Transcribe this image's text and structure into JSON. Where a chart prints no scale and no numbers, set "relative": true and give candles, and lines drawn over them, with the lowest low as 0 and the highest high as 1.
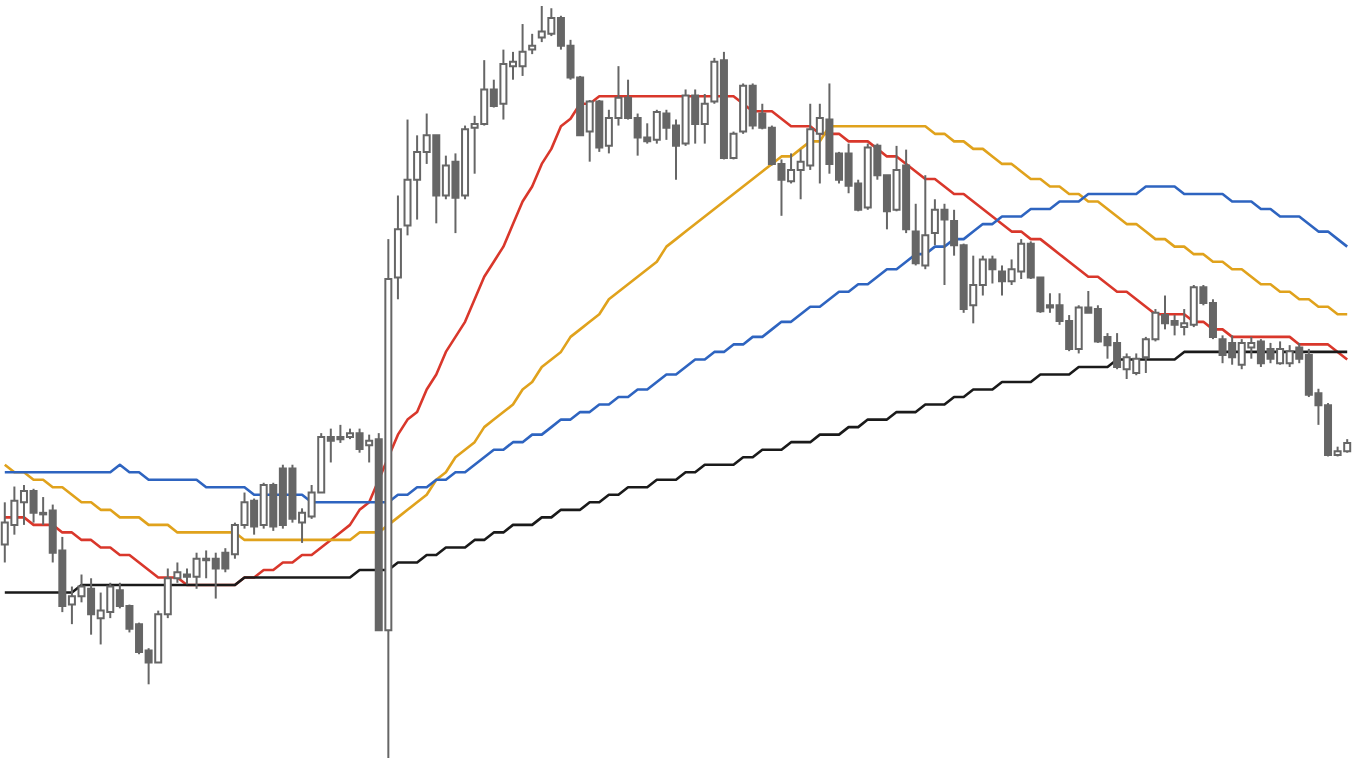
{
  "chart_data": {
    "type": "candlestick",
    "relative": true,
    "categories": [
      null,
      null,
      null,
      null,
      null,
      null,
      null,
      null,
      null,
      null,
      null,
      null,
      null,
      null,
      null,
      null,
      null,
      null,
      null,
      null,
      null,
      null,
      null,
      null,
      null,
      null,
      null,
      null,
      null,
      null,
      null,
      null,
      null,
      null,
      null,
      null,
      null,
      null,
      null,
      null,
      null,
      null,
      null,
      null,
      null,
      null,
      null,
      null,
      null,
      null,
      null,
      null,
      null,
      null,
      null,
      null,
      null,
      null,
      null,
      null,
      null,
      null,
      null,
      null,
      null,
      null,
      null,
      null,
      null,
      null,
      null,
      null,
      null,
      null,
      null,
      null,
      null,
      null,
      null,
      null,
      null,
      null,
      null,
      null,
      null,
      null,
      null,
      null,
      null,
      null,
      null,
      null,
      null,
      null,
      null,
      null,
      null,
      null,
      null,
      null,
      null,
      null,
      null,
      null,
      null,
      null,
      null,
      null,
      null,
      null,
      null,
      null,
      null,
      null,
      null,
      null,
      null,
      null,
      null,
      null,
      null,
      null,
      null,
      null,
      null,
      null,
      null,
      null,
      null,
      null,
      null,
      null,
      null,
      null,
      null,
      null,
      null,
      null,
      null,
      null,
      null
    ],
    "ohlc": [
      [
        0.284,
        0.34,
        0.26,
        0.313
      ],
      [
        0.31,
        0.361,
        0.297,
        0.342
      ],
      [
        0.34,
        0.363,
        0.31,
        0.355
      ],
      [
        0.355,
        0.358,
        0.313,
        0.326
      ],
      [
        0.326,
        0.347,
        0.31,
        0.324
      ],
      [
        0.329,
        0.337,
        0.26,
        0.273
      ],
      [
        0.276,
        0.294,
        0.194,
        0.202
      ],
      [
        0.204,
        0.228,
        0.178,
        0.215
      ],
      [
        0.215,
        0.244,
        0.207,
        0.228
      ],
      [
        0.225,
        0.239,
        0.164,
        0.191
      ],
      [
        0.186,
        0.22,
        0.151,
        0.196
      ],
      [
        0.194,
        0.233,
        0.186,
        0.228
      ],
      [
        0.223,
        0.233,
        0.199,
        0.202
      ],
      [
        0.202,
        0.204,
        0.167,
        0.172
      ],
      [
        0.178,
        0.18,
        0.138,
        0.141
      ],
      [
        0.143,
        0.146,
        0.098,
        0.127
      ],
      [
        0.127,
        0.196,
        0.127,
        0.191
      ],
      [
        0.191,
        0.252,
        0.186,
        0.239
      ],
      [
        0.239,
        0.26,
        0.233,
        0.247
      ],
      [
        0.244,
        0.252,
        0.231,
        0.241
      ],
      [
        0.241,
        0.273,
        0.225,
        0.265
      ],
      [
        0.263,
        0.276,
        0.239,
        0.265
      ],
      [
        0.265,
        0.273,
        0.212,
        0.252
      ],
      [
        0.273,
        0.279,
        0.247,
        0.252
      ],
      [
        0.271,
        0.313,
        0.265,
        0.31
      ],
      [
        0.31,
        0.353,
        0.305,
        0.34
      ],
      [
        0.342,
        0.345,
        0.297,
        0.308
      ],
      [
        0.31,
        0.366,
        0.305,
        0.363
      ],
      [
        0.363,
        0.366,
        0.302,
        0.308
      ],
      [
        0.385,
        0.39,
        0.305,
        0.31
      ],
      [
        0.385,
        0.39,
        0.313,
        0.318
      ],
      [
        0.313,
        0.332,
        0.286,
        0.326
      ],
      [
        0.321,
        0.363,
        0.318,
        0.353
      ],
      [
        0.353,
        0.432,
        0.353,
        0.427
      ],
      [
        0.427,
        0.438,
        0.393,
        0.422
      ],
      [
        0.427,
        0.443,
        0.419,
        0.424
      ],
      [
        0.427,
        0.438,
        0.424,
        0.432
      ],
      [
        0.432,
        0.438,
        0.406,
        0.411
      ],
      [
        0.416,
        0.43,
        0.393,
        0.422
      ],
      [
        0.424,
        0.432,
        0.17,
        0.17
      ],
      [
        0.17,
        0.69,
        0,
        0.637
      ],
      [
        0.639,
        0.748,
        0.61,
        0.703
      ],
      [
        0.708,
        0.849,
        0.695,
        0.769
      ],
      [
        0.769,
        0.828,
        0.716,
        0.806
      ],
      [
        0.806,
        0.857,
        0.79,
        0.828
      ],
      [
        0.828,
        0.828,
        0.711,
        0.748
      ],
      [
        0.748,
        0.801,
        0.743,
        0.788
      ],
      [
        0.793,
        0.804,
        0.698,
        0.745
      ],
      [
        0.748,
        0.841,
        0.743,
        0.836
      ],
      [
        0.838,
        0.854,
        0.777,
        0.843
      ],
      [
        0.843,
        0.928,
        0.841,
        0.889
      ],
      [
        0.889,
        0.902,
        0.865,
        0.867
      ],
      [
        0.87,
        0.942,
        0.849,
        0.923
      ],
      [
        0.92,
        0.939,
        0.902,
        0.926
      ],
      [
        0.92,
        0.976,
        0.907,
        0.939
      ],
      [
        0.942,
        0.963,
        0.936,
        0.947
      ],
      [
        0.958,
        1,
        0.952,
        0.966
      ],
      [
        0.963,
        0.997,
        0.96,
        0.984
      ],
      [
        0.984,
        0.987,
        0.942,
        0.947
      ],
      [
        0.947,
        0.955,
        0.902,
        0.905
      ],
      [
        0.905,
        0.907,
        0.828,
        0.828
      ],
      [
        0.833,
        0.875,
        0.793,
        0.873
      ],
      [
        0.873,
        0.875,
        0.806,
        0.812
      ],
      [
        0.814,
        0.862,
        0.804,
        0.851
      ],
      [
        0.851,
        0.92,
        0.841,
        0.878
      ],
      [
        0.878,
        0.902,
        0.849,
        0.851
      ],
      [
        0.851,
        0.857,
        0.801,
        0.825
      ],
      [
        0.825,
        0.844,
        0.817,
        0.82
      ],
      [
        0.822,
        0.862,
        0.817,
        0.859
      ],
      [
        0.857,
        0.862,
        0.822,
        0.838
      ],
      [
        0.841,
        0.849,
        0.769,
        0.814
      ],
      [
        0.817,
        0.889,
        0.814,
        0.881
      ],
      [
        0.881,
        0.889,
        0.817,
        0.843
      ],
      [
        0.843,
        0.883,
        0.817,
        0.87
      ],
      [
        0.873,
        0.931,
        0.87,
        0.926
      ],
      [
        0.928,
        0.939,
        0.796,
        0.798
      ],
      [
        0.798,
        0.833,
        0.796,
        0.83
      ],
      [
        0.833,
        0.897,
        0.83,
        0.894
      ],
      [
        0.894,
        0.897,
        0.836,
        0.841
      ],
      [
        0.857,
        0.87,
        0.836,
        0.838
      ],
      [
        0.838,
        0.841,
        0.788,
        0.79
      ],
      [
        0.79,
        0.796,
        0.721,
        0.769
      ],
      [
        0.767,
        0.804,
        0.764,
        0.782
      ],
      [
        0.782,
        0.809,
        0.743,
        0.793
      ],
      [
        0.788,
        0.87,
        0.782,
        0.836
      ],
      [
        0.83,
        0.87,
        0.764,
        0.851
      ],
      [
        0.849,
        0.897,
        0.777,
        0.79
      ],
      [
        0.804,
        0.806,
        0.764,
        0.769
      ],
      [
        0.804,
        0.817,
        0.751,
        0.761
      ],
      [
        0.764,
        0.769,
        0.727,
        0.729
      ],
      [
        0.732,
        0.817,
        0.729,
        0.812
      ],
      [
        0.814,
        0.817,
        0.769,
        0.775
      ],
      [
        0.775,
        0.775,
        0.703,
        0.727
      ],
      [
        0.729,
        0.814,
        0.727,
        0.782
      ],
      [
        0.788,
        0.809,
        0.698,
        0.703
      ],
      [
        0.7,
        0.737,
        0.655,
        0.658
      ],
      [
        0.655,
        0.775,
        0.65,
        0.695
      ],
      [
        0.698,
        0.743,
        0.682,
        0.729
      ],
      [
        0.729,
        0.737,
        0.629,
        0.716
      ],
      [
        0.714,
        0.729,
        0.668,
        0.682
      ],
      [
        0.682,
        0.684,
        0.592,
        0.597
      ],
      [
        0.602,
        0.668,
        0.578,
        0.629
      ],
      [
        0.629,
        0.668,
        0.615,
        0.663
      ],
      [
        0.663,
        0.668,
        0.631,
        0.65
      ],
      [
        0.647,
        0.655,
        0.615,
        0.634
      ],
      [
        0.634,
        0.663,
        0.629,
        0.65
      ],
      [
        0.647,
        0.69,
        0.637,
        0.684
      ],
      [
        0.684,
        0.687,
        0.637,
        0.639
      ],
      [
        0.639,
        0.639,
        0.592,
        0.594
      ],
      [
        0.602,
        0.618,
        0.592,
        0.599
      ],
      [
        0.602,
        0.618,
        0.576,
        0.581
      ],
      [
        0.581,
        0.589,
        0.541,
        0.544
      ],
      [
        0.544,
        0.602,
        0.538,
        0.599
      ],
      [
        0.599,
        0.621,
        0.592,
        0.592
      ],
      [
        0.597,
        0.602,
        0.552,
        0.554
      ],
      [
        0.56,
        0.565,
        0.531,
        0.549
      ],
      [
        0.552,
        0.565,
        0.517,
        0.52
      ],
      [
        0.517,
        0.538,
        0.504,
        0.533
      ],
      [
        0.512,
        0.538,
        0.509,
        0.531
      ],
      [
        0.533,
        0.56,
        0.512,
        0.557
      ],
      [
        0.557,
        0.597,
        0.554,
        0.592
      ],
      [
        0.589,
        0.615,
        0.57,
        0.578
      ],
      [
        0.581,
        0.589,
        0.562,
        0.576
      ],
      [
        0.573,
        0.597,
        0.562,
        0.578
      ],
      [
        0.576,
        0.629,
        0.573,
        0.626
      ],
      [
        0.626,
        0.629,
        0.602,
        0.605
      ],
      [
        0.605,
        0.61,
        0.557,
        0.56
      ],
      [
        0.557,
        0.562,
        0.525,
        0.536
      ],
      [
        0.552,
        0.562,
        0.523,
        0.533
      ],
      [
        0.523,
        0.557,
        0.517,
        0.552
      ],
      [
        0.546,
        0.56,
        0.531,
        0.552
      ],
      [
        0.554,
        0.557,
        0.52,
        0.525
      ],
      [
        0.544,
        0.552,
        0.525,
        0.531
      ],
      [
        0.525,
        0.554,
        0.523,
        0.544
      ],
      [
        0.525,
        0.549,
        0.52,
        0.541
      ],
      [
        0.546,
        0.552,
        0.525,
        0.531
      ],
      [
        0.536,
        0.544,
        0.48,
        0.483
      ],
      [
        0.485,
        0.491,
        0.443,
        0.469
      ],
      [
        0.469,
        0.472,
        0.401,
        0.403
      ],
      [
        0.403,
        0.414,
        0.401,
        0.408
      ],
      [
        0.408,
        0.424,
        0.406,
        0.419
      ]
    ],
    "series": [
      {
        "type": "line",
        "color": "#d9372b",
        "values": [
          0.32,
          0.32,
          0.32,
          0.31,
          0.31,
          0.31,
          0.3,
          0.3,
          0.29,
          0.29,
          0.28,
          0.28,
          0.27,
          0.27,
          0.26,
          0.25,
          0.24,
          0.24,
          0.24,
          0.23,
          0.23,
          0.23,
          0.23,
          0.23,
          0.23,
          0.24,
          0.24,
          0.25,
          0.25,
          0.26,
          0.26,
          0.27,
          0.27,
          0.28,
          0.29,
          0.3,
          0.31,
          0.33,
          0.34,
          0.37,
          0.4,
          0.43,
          0.45,
          0.46,
          0.49,
          0.51,
          0.54,
          0.56,
          0.58,
          0.61,
          0.64,
          0.66,
          0.68,
          0.71,
          0.74,
          0.76,
          0.79,
          0.81,
          0.84,
          0.85,
          0.87,
          0.87,
          0.88,
          0.88,
          0.88,
          0.88,
          0.88,
          0.88,
          0.88,
          0.88,
          0.88,
          0.88,
          0.88,
          0.88,
          0.88,
          0.88,
          0.88,
          0.87,
          0.86,
          0.86,
          0.86,
          0.85,
          0.84,
          0.84,
          0.84,
          0.83,
          0.83,
          0.83,
          0.82,
          0.82,
          0.82,
          0.81,
          0.8,
          0.8,
          0.79,
          0.78,
          0.77,
          0.77,
          0.76,
          0.75,
          0.75,
          0.74,
          0.73,
          0.72,
          0.71,
          0.7,
          0.7,
          0.69,
          0.69,
          0.68,
          0.67,
          0.66,
          0.65,
          0.64,
          0.64,
          0.63,
          0.62,
          0.62,
          0.61,
          0.6,
          0.59,
          0.59,
          0.59,
          0.59,
          0.58,
          0.58,
          0.57,
          0.57,
          0.56,
          0.56,
          0.56,
          0.56,
          0.56,
          0.56,
          0.56,
          0.55,
          0.55,
          0.55,
          0.55,
          0.54,
          0.53
        ]
      },
      {
        "type": "line",
        "color": "#e0a21c",
        "values": [
          0.39,
          0.38,
          0.38,
          0.37,
          0.37,
          0.36,
          0.36,
          0.35,
          0.34,
          0.34,
          0.33,
          0.33,
          0.32,
          0.32,
          0.32,
          0.31,
          0.31,
          0.31,
          0.3,
          0.3,
          0.3,
          0.3,
          0.3,
          0.3,
          0.3,
          0.29,
          0.29,
          0.29,
          0.29,
          0.29,
          0.29,
          0.29,
          0.29,
          0.29,
          0.29,
          0.29,
          0.29,
          0.3,
          0.3,
          0.3,
          0.31,
          0.32,
          0.33,
          0.34,
          0.35,
          0.37,
          0.38,
          0.4,
          0.41,
          0.42,
          0.44,
          0.45,
          0.46,
          0.47,
          0.49,
          0.5,
          0.52,
          0.53,
          0.54,
          0.56,
          0.57,
          0.58,
          0.59,
          0.61,
          0.62,
          0.63,
          0.64,
          0.65,
          0.66,
          0.68,
          0.69,
          0.7,
          0.71,
          0.72,
          0.73,
          0.74,
          0.75,
          0.76,
          0.77,
          0.78,
          0.79,
          0.8,
          0.8,
          0.81,
          0.82,
          0.82,
          0.84,
          0.84,
          0.84,
          0.84,
          0.84,
          0.84,
          0.84,
          0.84,
          0.84,
          0.84,
          0.84,
          0.83,
          0.83,
          0.82,
          0.82,
          0.81,
          0.81,
          0.8,
          0.79,
          0.79,
          0.78,
          0.77,
          0.77,
          0.76,
          0.76,
          0.75,
          0.75,
          0.74,
          0.74,
          0.73,
          0.72,
          0.71,
          0.71,
          0.7,
          0.69,
          0.69,
          0.68,
          0.68,
          0.67,
          0.67,
          0.66,
          0.66,
          0.65,
          0.65,
          0.64,
          0.63,
          0.63,
          0.62,
          0.62,
          0.61,
          0.61,
          0.6,
          0.6,
          0.59,
          0.59
        ]
      },
      {
        "type": "line",
        "color": "#2e64c0",
        "values": [
          0.38,
          0.38,
          0.38,
          0.38,
          0.38,
          0.38,
          0.38,
          0.38,
          0.38,
          0.38,
          0.38,
          0.38,
          0.39,
          0.38,
          0.38,
          0.37,
          0.37,
          0.37,
          0.37,
          0.37,
          0.37,
          0.36,
          0.36,
          0.36,
          0.36,
          0.36,
          0.35,
          0.35,
          0.35,
          0.35,
          0.35,
          0.35,
          0.34,
          0.34,
          0.34,
          0.34,
          0.34,
          0.34,
          0.34,
          0.34,
          0.34,
          0.35,
          0.35,
          0.36,
          0.36,
          0.37,
          0.37,
          0.38,
          0.38,
          0.39,
          0.4,
          0.41,
          0.41,
          0.42,
          0.42,
          0.43,
          0.43,
          0.44,
          0.45,
          0.45,
          0.46,
          0.46,
          0.47,
          0.47,
          0.48,
          0.48,
          0.49,
          0.49,
          0.5,
          0.51,
          0.51,
          0.52,
          0.53,
          0.53,
          0.54,
          0.54,
          0.55,
          0.55,
          0.56,
          0.56,
          0.57,
          0.58,
          0.58,
          0.59,
          0.6,
          0.6,
          0.61,
          0.62,
          0.62,
          0.63,
          0.63,
          0.64,
          0.65,
          0.65,
          0.66,
          0.67,
          0.67,
          0.68,
          0.68,
          0.69,
          0.69,
          0.7,
          0.71,
          0.71,
          0.72,
          0.72,
          0.72,
          0.73,
          0.73,
          0.73,
          0.74,
          0.74,
          0.74,
          0.75,
          0.75,
          0.75,
          0.75,
          0.75,
          0.75,
          0.76,
          0.76,
          0.76,
          0.76,
          0.75,
          0.75,
          0.75,
          0.75,
          0.75,
          0.74,
          0.74,
          0.74,
          0.73,
          0.73,
          0.72,
          0.72,
          0.72,
          0.71,
          0.7,
          0.7,
          0.69,
          0.68
        ]
      },
      {
        "type": "line",
        "color": "#1a1a1a",
        "values": [
          0.22,
          0.22,
          0.22,
          0.22,
          0.22,
          0.22,
          0.22,
          0.22,
          0.23,
          0.23,
          0.23,
          0.23,
          0.23,
          0.23,
          0.23,
          0.23,
          0.23,
          0.23,
          0.23,
          0.23,
          0.23,
          0.23,
          0.23,
          0.23,
          0.23,
          0.24,
          0.24,
          0.24,
          0.24,
          0.24,
          0.24,
          0.24,
          0.24,
          0.24,
          0.24,
          0.24,
          0.24,
          0.25,
          0.25,
          0.25,
          0.25,
          0.26,
          0.26,
          0.26,
          0.27,
          0.27,
          0.28,
          0.28,
          0.28,
          0.29,
          0.29,
          0.3,
          0.3,
          0.31,
          0.31,
          0.31,
          0.32,
          0.32,
          0.33,
          0.33,
          0.33,
          0.34,
          0.34,
          0.35,
          0.35,
          0.36,
          0.36,
          0.36,
          0.37,
          0.37,
          0.37,
          0.38,
          0.38,
          0.39,
          0.39,
          0.39,
          0.39,
          0.4,
          0.4,
          0.41,
          0.41,
          0.41,
          0.42,
          0.42,
          0.42,
          0.43,
          0.43,
          0.43,
          0.44,
          0.44,
          0.45,
          0.45,
          0.45,
          0.46,
          0.46,
          0.46,
          0.47,
          0.47,
          0.47,
          0.48,
          0.48,
          0.49,
          0.49,
          0.49,
          0.5,
          0.5,
          0.5,
          0.5,
          0.51,
          0.51,
          0.51,
          0.51,
          0.52,
          0.52,
          0.52,
          0.52,
          0.53,
          0.53,
          0.53,
          0.53,
          0.53,
          0.53,
          0.53,
          0.54,
          0.54,
          0.54,
          0.54,
          0.54,
          0.54,
          0.54,
          0.54,
          0.54,
          0.54,
          0.54,
          0.54,
          0.54,
          0.54,
          0.54,
          0.54,
          0.54,
          0.54
        ]
      }
    ]
  }
}
